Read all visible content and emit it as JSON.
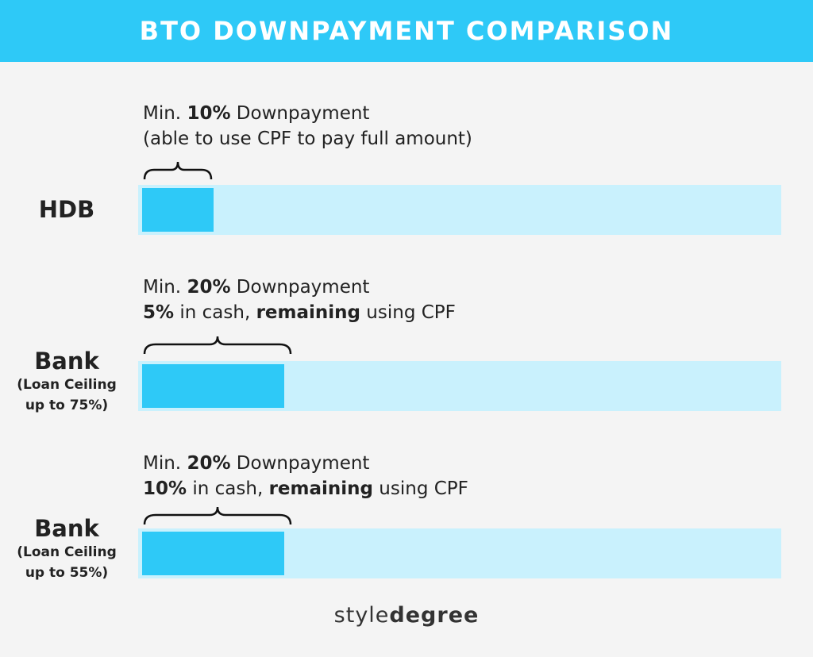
{
  "title": "BTO DOWNPAYMENT COMPARISON",
  "colors": {
    "accent": "#2ec9f7",
    "track": "#c9f1fd",
    "background": "#f4f4f4"
  },
  "rows": [
    {
      "name": "HDB",
      "sub1": "",
      "sub2": "",
      "annot_line1": {
        "pre": "Min. ",
        "bold": "10%",
        "post": " Downpayment"
      },
      "annot_line2": {
        "a_bold": "",
        "a": "(able to use CPF to pay full amount)",
        "b_bold": "",
        "b": ""
      },
      "downpayment_percent": 10
    },
    {
      "name": "Bank",
      "sub1": "(Loan Ceiling",
      "sub2": "up to 75%)",
      "annot_line1": {
        "pre": "Min. ",
        "bold": "20%",
        "post": " Downpayment"
      },
      "annot_line2": {
        "a_bold": "5%",
        "a": " in cash, ",
        "b_bold": "remaining",
        "b": " using CPF"
      },
      "downpayment_percent": 20
    },
    {
      "name": "Bank",
      "sub1": "(Loan Ceiling",
      "sub2": "up to 55%)",
      "annot_line1": {
        "pre": "Min. ",
        "bold": "20%",
        "post": " Downpayment"
      },
      "annot_line2": {
        "a_bold": "10%",
        "a": " in cash, ",
        "b_bold": "remaining",
        "b": " using CPF"
      },
      "downpayment_percent": 20
    }
  ],
  "footer": {
    "light": "style",
    "bold": "degree"
  },
  "chart_data": {
    "type": "bar",
    "orientation": "horizontal",
    "title": "BTO DOWNPAYMENT COMPARISON",
    "categories": [
      "HDB",
      "Bank (Loan Ceiling up to 75%)",
      "Bank (Loan Ceiling up to 55%)"
    ],
    "values": [
      10,
      20,
      20
    ],
    "xlim": [
      0,
      100
    ],
    "grid": false
  }
}
